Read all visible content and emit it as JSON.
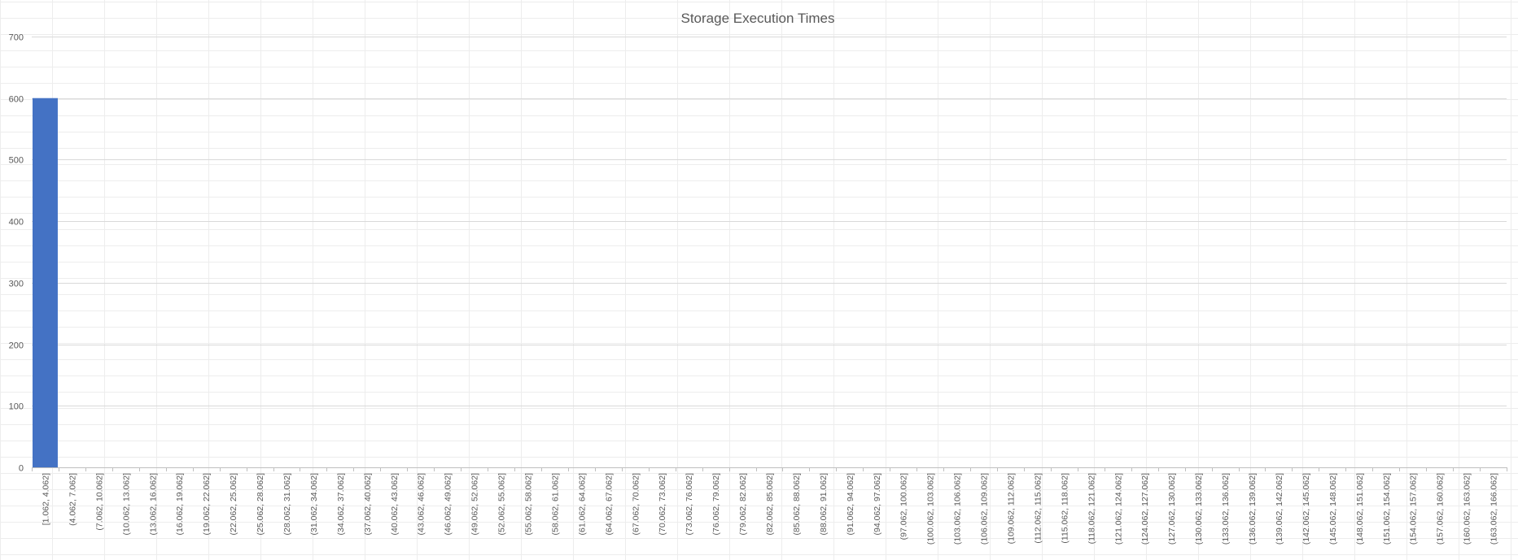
{
  "chart_data": {
    "type": "bar",
    "title": "Storage Execution Times",
    "xlabel": "",
    "ylabel": "",
    "ylim": [
      0,
      700
    ],
    "yticks": [
      0,
      100,
      200,
      300,
      400,
      500,
      600,
      700
    ],
    "grid": true,
    "legend": "none",
    "bar_color": "#4472C4",
    "gridline_color": "#D9D9D9",
    "categories": [
      "[1.062, 4.062]",
      "(4.062, 7.062]",
      "(7.062, 10.062]",
      "(10.062, 13.062]",
      "(13.062, 16.062]",
      "(16.062, 19.062]",
      "(19.062, 22.062]",
      "(22.062, 25.062]",
      "(25.062, 28.062]",
      "(28.062, 31.062]",
      "(31.062, 34.062]",
      "(34.062, 37.062]",
      "(37.062, 40.062]",
      "(40.062, 43.062]",
      "(43.062, 46.062]",
      "(46.062, 49.062]",
      "(49.062, 52.062]",
      "(52.062, 55.062]",
      "(55.062, 58.062]",
      "(58.062, 61.062]",
      "(61.062, 64.062]",
      "(64.062, 67.062]",
      "(67.062, 70.062]",
      "(70.062, 73.062]",
      "(73.062, 76.062]",
      "(76.062, 79.062]",
      "(79.062, 82.062]",
      "(82.062, 85.062]",
      "(85.062, 88.062]",
      "(88.062, 91.062]",
      "(91.062, 94.062]",
      "(94.062, 97.062]",
      "(97.062, 100.062]",
      "(100.062, 103.062]",
      "(103.062, 106.062]",
      "(106.062, 109.062]",
      "(109.062, 112.062]",
      "(112.062, 115.062]",
      "(115.062, 118.062]",
      "(118.062, 121.062]",
      "(121.062, 124.062]",
      "(124.062, 127.062]",
      "(127.062, 130.062]",
      "(130.062, 133.062]",
      "(133.062, 136.062]",
      "(136.062, 139.062]",
      "(139.062, 142.062]",
      "(142.062, 145.062]",
      "(145.062, 148.062]",
      "(148.062, 151.062]",
      "(151.062, 154.062]",
      "(154.062, 157.062]",
      "(157.062, 160.062]",
      "(160.062, 163.062]",
      "(163.062, 166.062]"
    ],
    "values": [
      600,
      0,
      0,
      0,
      0,
      0,
      0,
      0,
      0,
      0,
      0,
      0,
      0,
      0,
      0,
      0,
      0,
      0,
      0,
      0,
      0,
      0,
      0,
      0,
      0,
      0,
      0,
      0,
      0,
      0,
      0,
      0,
      0,
      0,
      0,
      0,
      0,
      0,
      0,
      0,
      0,
      0,
      0,
      0,
      0,
      0,
      0,
      0,
      0,
      0,
      0,
      0,
      0,
      0,
      0
    ]
  }
}
